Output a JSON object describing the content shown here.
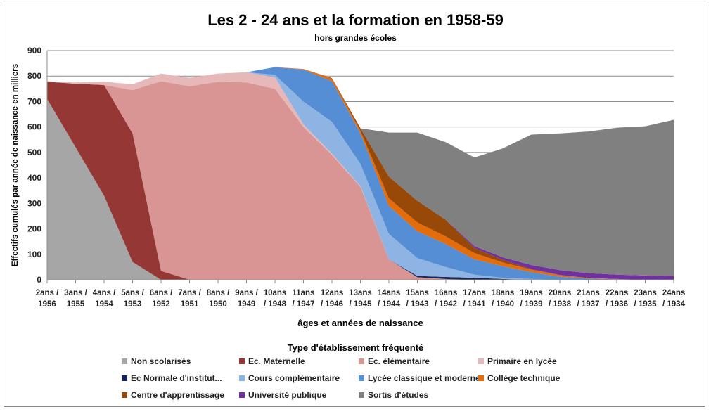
{
  "chart_data": {
    "type": "area",
    "stacked": true,
    "title": "Les 2 - 24 ans et la formation en 1958-59",
    "subtitle": "hors grandes écoles",
    "xlabel": "âges et années de naissance",
    "ylabel": "Effectifs cumulés par année de naissance en milliers",
    "ylim": [
      0,
      900
    ],
    "yticks": [
      0,
      100,
      200,
      300,
      400,
      500,
      600,
      700,
      800,
      900
    ],
    "grid": true,
    "legend_title": "Type d'établissement fréquenté",
    "legend_position": "bottom",
    "categories": [
      [
        "2ans /",
        "1956"
      ],
      [
        "3ans /",
        "1955"
      ],
      [
        "4ans /",
        "1954"
      ],
      [
        "5ans /",
        "1953"
      ],
      [
        "6ans /",
        "1952"
      ],
      [
        "7ans /",
        "1951"
      ],
      [
        "8ans /",
        "1950"
      ],
      [
        "9ans /",
        "1949"
      ],
      [
        "10ans",
        "/ 1948"
      ],
      [
        "11ans",
        "/ 1947"
      ],
      [
        "12ans",
        "/ 1946"
      ],
      [
        "13ans",
        "/ 1945"
      ],
      [
        "14ans",
        "/ 1944"
      ],
      [
        "15ans",
        "/ 1943"
      ],
      [
        "16ans",
        "/ 1942"
      ],
      [
        "17ans",
        "/ 1941"
      ],
      [
        "18ans",
        "/ 1940"
      ],
      [
        "19ans",
        "/ 1939"
      ],
      [
        "20ans",
        "/ 1938"
      ],
      [
        "21ans",
        "/ 1937"
      ],
      [
        "22ans",
        "/ 1936"
      ],
      [
        "23ans",
        "/ 1935"
      ],
      [
        "24ans",
        "/ 1934"
      ]
    ],
    "series": [
      {
        "name": "Non scolarisés",
        "color": "#a6a6a6",
        "values": [
          710,
          520,
          330,
          70,
          0,
          0,
          0,
          0,
          0,
          0,
          0,
          0,
          0,
          0,
          0,
          0,
          0,
          0,
          0,
          0,
          0,
          0,
          0
        ]
      },
      {
        "name": "Ec. Maternelle",
        "color": "#953735",
        "values": [
          68,
          250,
          435,
          505,
          35,
          0,
          0,
          0,
          0,
          0,
          0,
          0,
          0,
          0,
          0,
          0,
          0,
          0,
          0,
          0,
          0,
          0,
          0
        ]
      },
      {
        "name": "Ec. élémentaire",
        "color": "#d99594",
        "values": [
          0,
          0,
          0,
          170,
          745,
          760,
          778,
          775,
          750,
          600,
          490,
          365,
          80,
          10,
          3,
          0,
          0,
          0,
          0,
          0,
          0,
          0,
          0
        ]
      },
      {
        "name": "Primaire en lycée",
        "color": "#e6b9b8",
        "values": [
          2,
          5,
          13,
          23,
          30,
          33,
          32,
          40,
          45,
          10,
          5,
          3,
          0,
          0,
          0,
          0,
          0,
          0,
          0,
          0,
          0,
          0,
          0
        ]
      },
      {
        "name": "Ec Normale d'institut...",
        "color": "#17255a",
        "values": [
          0,
          0,
          0,
          0,
          0,
          0,
          0,
          0,
          0,
          0,
          0,
          0,
          0,
          5,
          8,
          8,
          3,
          0,
          0,
          0,
          0,
          0,
          0
        ]
      },
      {
        "name": "Cours complémentaire",
        "color": "#8eb4e3",
        "values": [
          0,
          0,
          0,
          0,
          0,
          0,
          0,
          0,
          10,
          90,
          125,
          87,
          100,
          70,
          39,
          12,
          5,
          3,
          0,
          0,
          0,
          0,
          0
        ]
      },
      {
        "name": "Lycée classique et moderne",
        "color": "#558ed5",
        "values": [
          0,
          0,
          0,
          0,
          0,
          0,
          0,
          0,
          30,
          125,
          160,
          120,
          110,
          105,
          90,
          60,
          45,
          27,
          12,
          5,
          2,
          0,
          0
        ]
      },
      {
        "name": "Collège technique",
        "color": "#e46c0a",
        "values": [
          0,
          0,
          0,
          0,
          0,
          0,
          0,
          0,
          0,
          3,
          10,
          10,
          30,
          35,
          30,
          25,
          15,
          10,
          6,
          2,
          1,
          0,
          0
        ]
      },
      {
        "name": "Centre d'apprentissage",
        "color": "#984807",
        "values": [
          0,
          0,
          0,
          0,
          0,
          0,
          0,
          0,
          0,
          0,
          2,
          10,
          85,
          85,
          65,
          20,
          10,
          2,
          1,
          0,
          0,
          0,
          0
        ]
      },
      {
        "name": "Université publique",
        "color": "#7030a0",
        "values": [
          0,
          0,
          0,
          0,
          0,
          0,
          0,
          0,
          0,
          0,
          0,
          0,
          0,
          0,
          0,
          7,
          10,
          16,
          19,
          19,
          17,
          17,
          15
        ]
      },
      {
        "name": "Sortis d'études",
        "color": "#808080",
        "values": [
          0,
          0,
          0,
          0,
          0,
          0,
          0,
          0,
          0,
          0,
          0,
          0,
          173,
          268,
          305,
          348,
          428,
          512,
          537,
          556,
          577,
          586,
          613
        ]
      }
    ]
  }
}
